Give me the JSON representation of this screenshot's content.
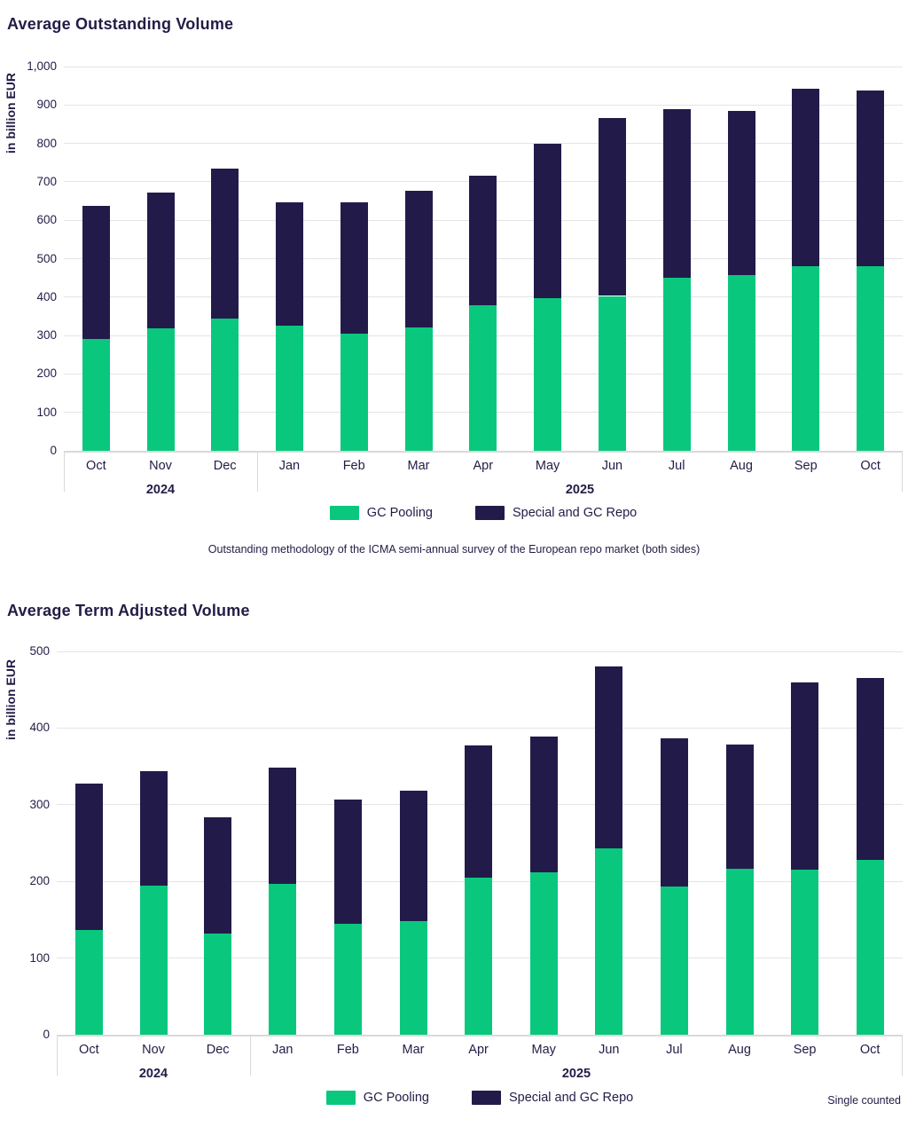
{
  "colors": {
    "gc_pooling_green": "#09c87e",
    "special_repo_navy": "#221b4a",
    "text_navy": "#221c46",
    "gridline": "#e4e4e4",
    "axis": "#d9d9d9"
  },
  "chart_data": [
    {
      "type": "bar",
      "stacked": true,
      "title": "Average Outstanding Volume",
      "ylabel": "in billion EUR",
      "ylim": [
        0,
        1000
      ],
      "ytick_step": 100,
      "ytick_labels": [
        "0",
        "100",
        "200",
        "300",
        "400",
        "500",
        "600",
        "700",
        "800",
        "900",
        "1,000"
      ],
      "grid": true,
      "legend_position": "bottom",
      "categories": [
        "Oct",
        "Nov",
        "Dec",
        "Jan",
        "Feb",
        "Mar",
        "Apr",
        "May",
        "Jun",
        "Jul",
        "Aug",
        "Sep",
        "Oct"
      ],
      "year_groups": [
        {
          "label": "2024",
          "span": 3
        },
        {
          "label": "2025",
          "span": 10
        }
      ],
      "series": [
        {
          "name": "GC Pooling",
          "color": "#09c87e",
          "values": [
            290,
            318,
            344,
            326,
            304,
            320,
            379,
            397,
            403,
            450,
            457,
            480,
            481
          ]
        },
        {
          "name": "Special and GC Repo",
          "color": "#221b4a",
          "values": [
            348,
            355,
            391,
            320,
            342,
            356,
            338,
            403,
            462,
            440,
            427,
            463,
            457
          ]
        }
      ],
      "caption": "Outstanding methodology of the ICMA semi-annual survey of the European repo market (both sides)"
    },
    {
      "type": "bar",
      "stacked": true,
      "title": "Average Term Adjusted Volume",
      "ylabel": "in billion EUR",
      "ylim": [
        0,
        500
      ],
      "ytick_step": 100,
      "ytick_labels": [
        "0",
        "100",
        "200",
        "300",
        "400",
        "500"
      ],
      "grid": true,
      "legend_position": "bottom",
      "categories": [
        "Oct",
        "Nov",
        "Dec",
        "Jan",
        "Feb",
        "Mar",
        "Apr",
        "May",
        "Jun",
        "Jul",
        "Aug",
        "Sep",
        "Oct"
      ],
      "year_groups": [
        {
          "label": "2024",
          "span": 3
        },
        {
          "label": "2025",
          "span": 10
        }
      ],
      "series": [
        {
          "name": "GC Pooling",
          "color": "#09c87e",
          "values": [
            137,
            195,
            132,
            197,
            145,
            148,
            205,
            212,
            243,
            193,
            216,
            215,
            228
          ]
        },
        {
          "name": "Special and GC Repo",
          "color": "#221b4a",
          "values": [
            190,
            149,
            151,
            151,
            162,
            170,
            172,
            177,
            237,
            194,
            163,
            245,
            237
          ]
        }
      ],
      "note": "Single counted"
    }
  ]
}
